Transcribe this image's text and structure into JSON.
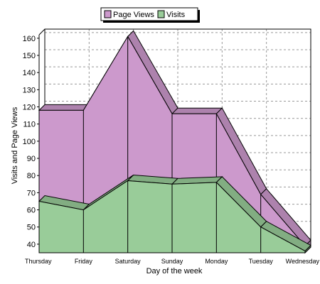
{
  "chart_data": {
    "type": "area",
    "xlabel": "Day of the week",
    "ylabel": "Visits and Page Views",
    "ylim": [
      35,
      162
    ],
    "y_ticks": [
      40,
      50,
      60,
      70,
      80,
      90,
      100,
      110,
      120,
      130,
      140,
      150,
      160
    ],
    "grid": true,
    "legend_position": "top-center",
    "categories": [
      "Thursday",
      "Friday",
      "Saturday",
      "Sunday",
      "Monday",
      "Tuesday",
      "Wednesday"
    ],
    "series": [
      {
        "name": "Page Views",
        "values": [
          118,
          118,
          161,
          116,
          116,
          69,
          39
        ],
        "color": "#cc99cc"
      },
      {
        "name": "Visits",
        "values": [
          65,
          60,
          77,
          75,
          76,
          50,
          36
        ],
        "color": "#99cc99"
      }
    ],
    "legend": {
      "items": [
        {
          "label": "Page Views",
          "color": "#cc99cc"
        },
        {
          "label": "Visits",
          "color": "#99cc99"
        }
      ]
    }
  }
}
